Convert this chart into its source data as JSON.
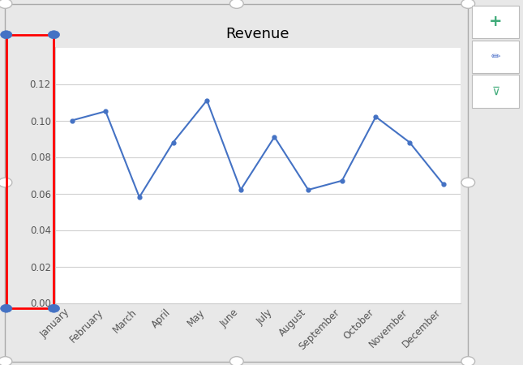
{
  "title": "Revenue",
  "categories": [
    "January",
    "February",
    "March",
    "April",
    "May",
    "June",
    "July",
    "August",
    "September",
    "October",
    "November",
    "December"
  ],
  "values": [
    0.1,
    0.105,
    0.058,
    0.088,
    0.111,
    0.062,
    0.091,
    0.062,
    0.067,
    0.102,
    0.088,
    0.065
  ],
  "line_color": "#4472C4",
  "marker_color": "#4472C4",
  "plot_bg_color": "#FFFFFF",
  "outer_bg": "#E8E8E8",
  "grid_color": "#D0D0D0",
  "ylim": [
    0.0,
    0.14
  ],
  "yticks": [
    0.0,
    0.02,
    0.04,
    0.06,
    0.08,
    0.1,
    0.12
  ],
  "title_fontsize": 13,
  "tick_fontsize": 8.5,
  "border_color": "#AAAAAA",
  "handle_color": "#BBBBBB",
  "red_box_color": "#FF0000",
  "blue_handle_color": "#4472C4",
  "button_green": "#3DAA78",
  "button_border": "#BBBBBB"
}
